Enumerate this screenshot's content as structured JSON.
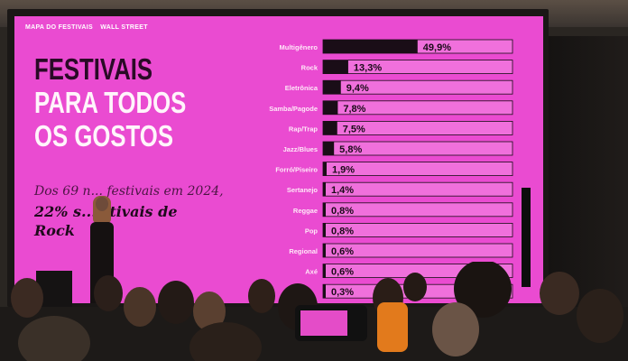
{
  "slide": {
    "brand": "MAPA DO FESTIVAIS",
    "brand_partner": "WALL STREET",
    "headline_line1": "FESTIVAIS",
    "headline_line2": "PARA TODOS",
    "headline_line3": "OS GOSTOS",
    "subtitle_line1": "Dos 69 n... festivais em 2024,",
    "subtitle_line2": "22% s... stivais de",
    "subtitle_line3": "Rock"
  },
  "colors": {
    "slide_background": "#ea4bd1",
    "bar_fill": "#1a0d17",
    "bar_track": "#f070dc"
  },
  "chart_data": {
    "type": "bar",
    "orientation": "horizontal",
    "categories": [
      "Multigênero",
      "Rock",
      "Eletrônica",
      "Samba/Pagode",
      "Rap/Trap",
      "Jazz/Blues",
      "Forró/Piseiro",
      "Sertanejo",
      "Reggae",
      "Pop",
      "Regional",
      "Axé",
      ""
    ],
    "values": [
      49.9,
      13.3,
      9.4,
      7.8,
      7.5,
      5.8,
      1.9,
      1.4,
      0.8,
      0.8,
      0.6,
      0.6,
      0.3
    ],
    "value_labels": [
      "49,9%",
      "13,3%",
      "9,4%",
      "7,8%",
      "7,5%",
      "5,8%",
      "1,9%",
      "1,4%",
      "0,8%",
      "0,8%",
      "0,6%",
      "0,6%",
      "0,3%"
    ],
    "xlim": [
      0,
      100
    ],
    "grid": false,
    "legend": "none"
  }
}
